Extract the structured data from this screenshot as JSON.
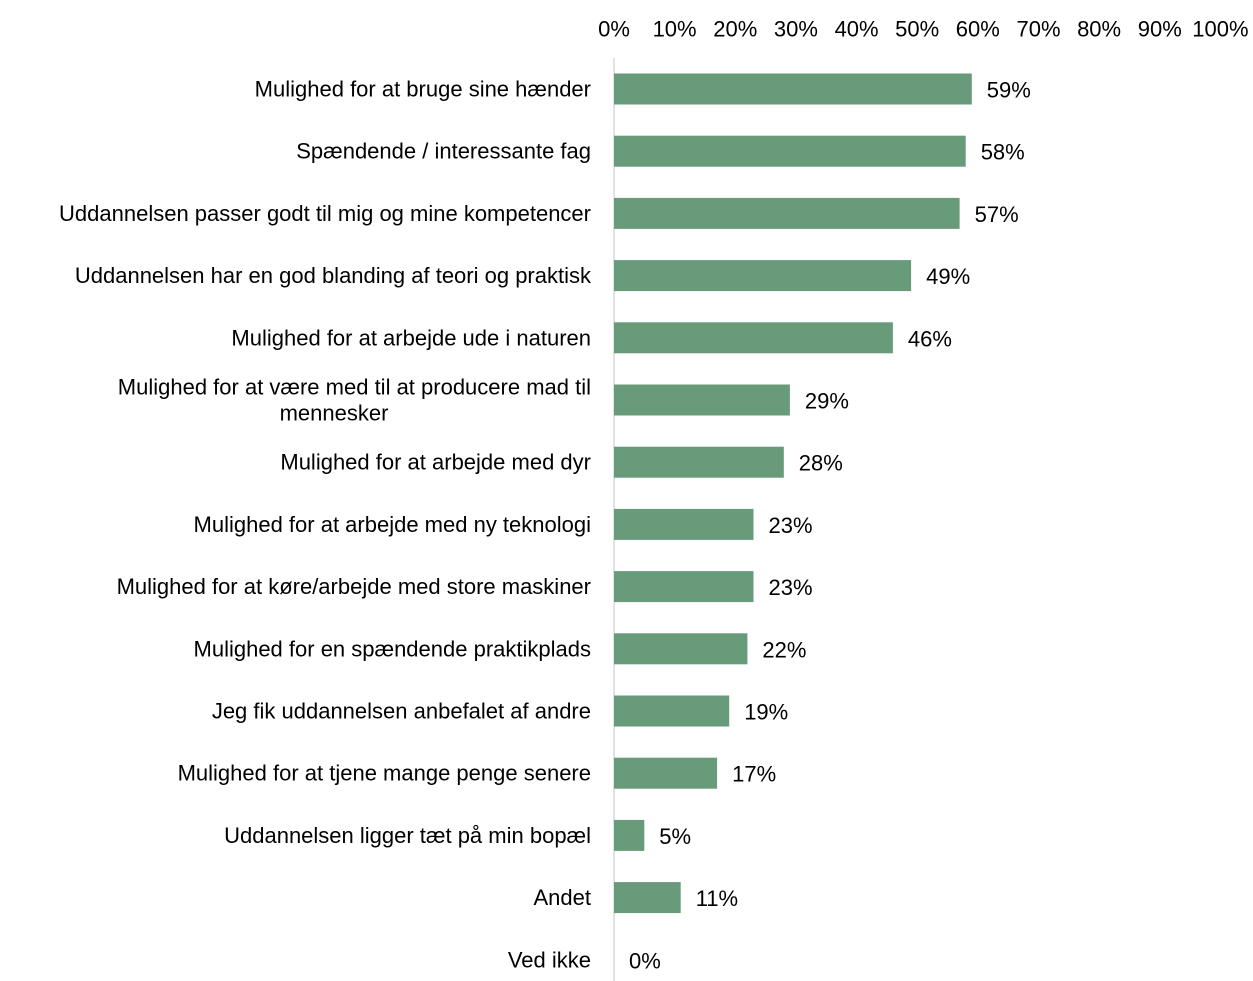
{
  "chart_data": {
    "type": "bar",
    "orientation": "horizontal",
    "title": "",
    "xlabel": "",
    "ylabel": "",
    "xlim": [
      0,
      100
    ],
    "x_axis_position": "top",
    "grid": false,
    "legend": "none",
    "bar_color": "#679b7a",
    "axis_line_color": "#d9d9d9",
    "x_ticks": [
      "0%",
      "10%",
      "20%",
      "30%",
      "40%",
      "50%",
      "60%",
      "70%",
      "80%",
      "90%",
      "100%"
    ],
    "categories": [
      [
        "Mulighed for at bruge sine hænder"
      ],
      [
        "Spændende / interessante fag"
      ],
      [
        "Uddannelsen passer godt til mig og mine kompetencer"
      ],
      [
        "Uddannelsen har en god blanding af teori og praktisk"
      ],
      [
        "Mulighed for at arbejde ude i naturen"
      ],
      [
        "Mulighed for at være med til at producere mad til",
        "mennesker"
      ],
      [
        "Mulighed for at arbejde med dyr"
      ],
      [
        "Mulighed for at arbejde med ny teknologi"
      ],
      [
        "Mulighed for at køre/arbejde med store maskiner"
      ],
      [
        "Mulighed for en spændende praktikplads"
      ],
      [
        "Jeg fik uddannelsen anbefalet af andre"
      ],
      [
        "Mulighed for at tjene mange penge senere"
      ],
      [
        "Uddannelsen ligger tæt på min bopæl"
      ],
      [
        "Andet"
      ],
      [
        "Ved ikke"
      ]
    ],
    "values": [
      59,
      58,
      57,
      49,
      46,
      29,
      28,
      23,
      23,
      22,
      19,
      17,
      5,
      11,
      0
    ],
    "data_labels": [
      "59%",
      "58%",
      "57%",
      "49%",
      "46%",
      "29%",
      "28%",
      "23%",
      "23%",
      "22%",
      "19%",
      "17%",
      "5%",
      "11%",
      "0%"
    ]
  }
}
